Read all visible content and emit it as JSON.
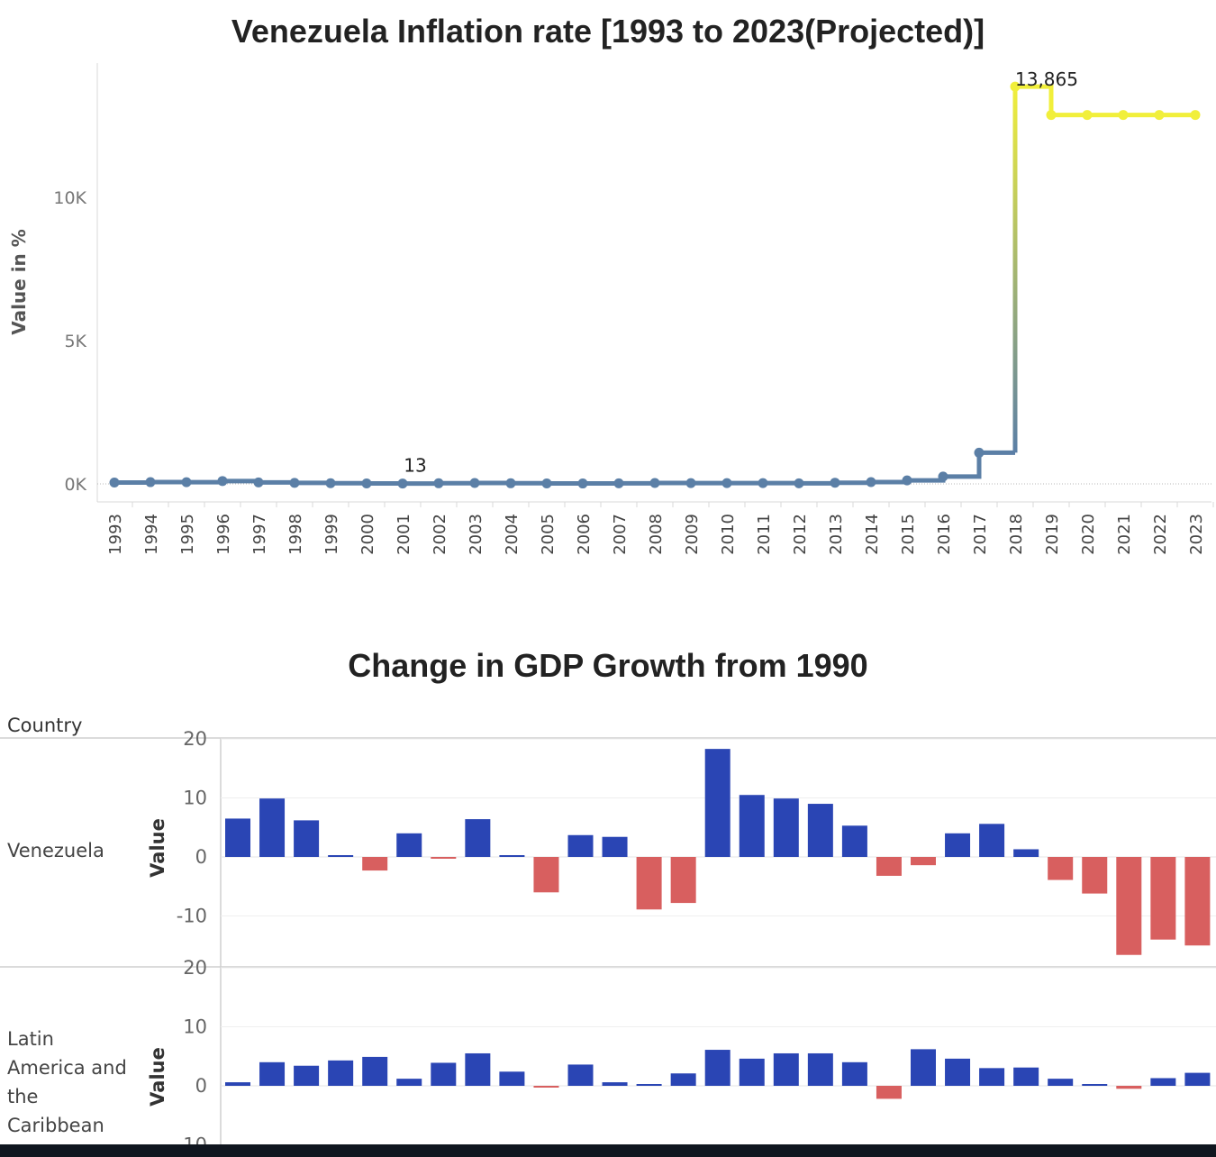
{
  "chart_data": [
    {
      "type": "line",
      "title": "Venezuela Inflation rate [1993 to 2023(Projected)]",
      "ylabel": "Value in %",
      "xlabel": "",
      "ylim": [
        0,
        14000
      ],
      "y_ticks": [
        {
          "value": 0,
          "label": "0K"
        },
        {
          "value": 5000,
          "label": "5K"
        },
        {
          "value": 10000,
          "label": "10K"
        }
      ],
      "x": [
        "1993",
        "1994",
        "1995",
        "1996",
        "1997",
        "1998",
        "1999",
        "2000",
        "2001",
        "2002",
        "2003",
        "2004",
        "2005",
        "2006",
        "2007",
        "2008",
        "2009",
        "2010",
        "2011",
        "2012",
        "2013",
        "2014",
        "2015",
        "2016",
        "2017",
        "2018",
        "2019",
        "2020",
        "2021",
        "2022",
        "2023"
      ],
      "values": [
        46,
        61,
        60,
        100,
        50,
        36,
        24,
        16,
        13,
        22,
        31,
        22,
        16,
        14,
        19,
        31,
        27,
        28,
        26,
        21,
        41,
        62,
        122,
        255,
        1087,
        13865,
        12875,
        12875,
        12875,
        12875,
        12875
      ],
      "annotations": [
        {
          "x": "2001",
          "label": "13"
        },
        {
          "x": "2018",
          "label": "13,865"
        }
      ],
      "line_style": "step",
      "colors": {
        "low": "#5b7fa6",
        "high": "#f1ef3b"
      }
    },
    {
      "type": "bar",
      "title": "Change in GDP Growth from 1990",
      "row_header": "Country",
      "ylabel": "Value",
      "ylim": [
        -16,
        22
      ],
      "y_ticks": [
        -10,
        0,
        10,
        20
      ],
      "colors": {
        "positive": "#2a45b4",
        "negative": "#d85f5f"
      },
      "series": [
        {
          "name": "Venezuela",
          "values": [
            6.5,
            9.9,
            6.2,
            0.3,
            -2.3,
            4.0,
            -0.2,
            6.4,
            0.3,
            -6.0,
            3.7,
            3.4,
            -8.9,
            -7.8,
            18.3,
            10.5,
            9.9,
            9.0,
            5.3,
            -3.2,
            -1.4,
            4.0,
            5.6,
            1.3,
            -3.9,
            -6.2,
            -16.6,
            -14.0,
            -15.0
          ]
        },
        {
          "name": "Latin America and the Caribbean",
          "values": [
            0.6,
            4.0,
            3.4,
            4.3,
            4.9,
            1.2,
            3.9,
            5.5,
            2.4,
            -0.3,
            3.6,
            0.6,
            0.2,
            2.1,
            6.1,
            4.6,
            5.5,
            5.5,
            4.0,
            -2.2,
            6.2,
            4.6,
            3.0,
            3.1,
            1.2,
            0.3,
            -0.5,
            1.3,
            2.2
          ]
        }
      ]
    }
  ]
}
